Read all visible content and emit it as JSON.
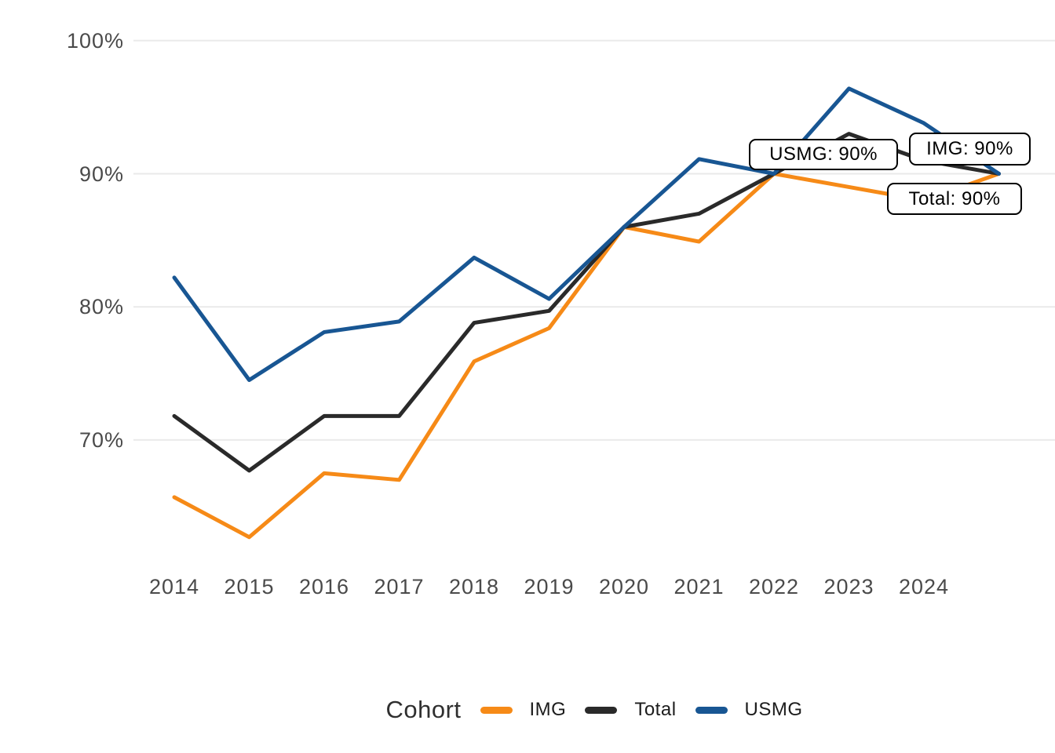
{
  "chart_data": {
    "type": "line",
    "title": "",
    "x": [
      2014,
      2015,
      2016,
      2017,
      2018,
      2019,
      2020,
      2021,
      2022,
      2023,
      2024,
      2025
    ],
    "x_axis_tick_labels": [
      "2014",
      "2015",
      "2016",
      "2017",
      "2018",
      "2019",
      "2020",
      "2021",
      "2022",
      "2023",
      "2024"
    ],
    "y_ticks": [
      {
        "value": 100,
        "label": "100%"
      },
      {
        "value": 90,
        "label": "90%"
      },
      {
        "value": 80,
        "label": "80%"
      },
      {
        "value": 70,
        "label": "70%"
      }
    ],
    "ylim": [
      61,
      101
    ],
    "grid": "horizontal-major-only",
    "series": [
      {
        "name": "IMG",
        "color": "#F68A17",
        "values": [
          65.7,
          62.7,
          67.5,
          67.0,
          75.9,
          78.4,
          86.0,
          84.9,
          90.0,
          89.0,
          88.0,
          90.0
        ]
      },
      {
        "name": "Total",
        "color": "#2A2A2A",
        "values": [
          71.8,
          67.7,
          71.8,
          71.8,
          78.8,
          79.7,
          86.0,
          87.0,
          90.0,
          93.0,
          91.0,
          90.0
        ]
      },
      {
        "name": "USMG",
        "color": "#185693",
        "values": [
          82.2,
          74.5,
          78.1,
          78.9,
          83.7,
          80.6,
          86.0,
          91.1,
          90.0,
          96.4,
          93.8,
          90.0
        ]
      }
    ],
    "annotations": [
      {
        "text": "USMG: 90%"
      },
      {
        "text": "IMG: 90%"
      },
      {
        "text": "Total: 90%"
      }
    ],
    "legend": {
      "title": "Cohort",
      "position": "bottom",
      "entries": [
        "IMG",
        "Total",
        "USMG"
      ]
    },
    "colors": {
      "gridline": "#EAEAEA",
      "axis_text": "#4A4A4A",
      "background": "#FFFFFF"
    }
  }
}
